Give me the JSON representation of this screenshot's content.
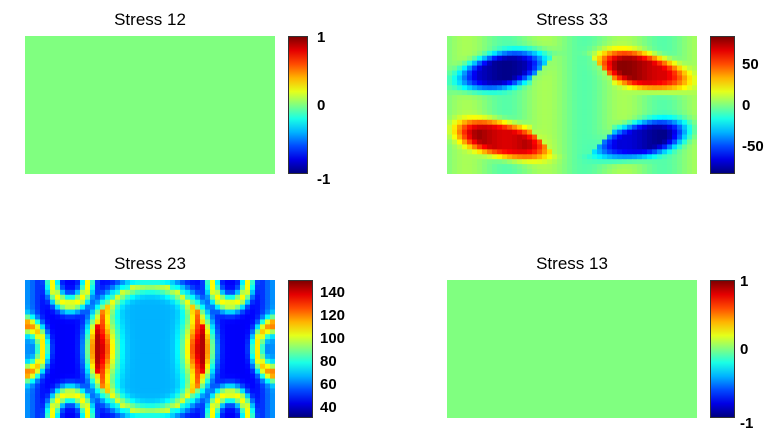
{
  "colors": {
    "uniform_field": "#80ff80",
    "colormap": "jet"
  },
  "chart_data": [
    {
      "type": "heatmap",
      "id": "s12",
      "title": "Stress 12",
      "pattern": "uniform",
      "value": 0,
      "clim": [
        -1,
        1
      ],
      "colorbar_ticks": [
        {
          "value": 1,
          "label": "1"
        },
        {
          "value": 0,
          "label": "0"
        },
        {
          "value": -1,
          "label": "-1"
        }
      ]
    },
    {
      "type": "heatmap",
      "id": "s33",
      "title": "Stress 33",
      "pattern": "quadrant-lobes",
      "clim": [
        -85,
        85
      ],
      "colorbar_ticks": [
        {
          "value": 50,
          "label": "50"
        },
        {
          "value": 0,
          "label": "0"
        },
        {
          "value": -50,
          "label": "-50"
        }
      ]
    },
    {
      "type": "heatmap",
      "id": "s23",
      "title": "Stress 23",
      "pattern": "cell-arcs",
      "clim": [
        30,
        150
      ],
      "colorbar_ticks": [
        {
          "value": 140,
          "label": "140"
        },
        {
          "value": 120,
          "label": "120"
        },
        {
          "value": 100,
          "label": "100"
        },
        {
          "value": 80,
          "label": "80"
        },
        {
          "value": 60,
          "label": "60"
        },
        {
          "value": 40,
          "label": "40"
        }
      ]
    },
    {
      "type": "heatmap",
      "id": "s13",
      "title": "Stress 13",
      "pattern": "uniform",
      "value": 0,
      "clim": [
        -1,
        1
      ],
      "colorbar_ticks": [
        {
          "value": 1,
          "label": "1"
        },
        {
          "value": 0,
          "label": "0"
        },
        {
          "value": -1,
          "label": "-1"
        }
      ]
    }
  ]
}
